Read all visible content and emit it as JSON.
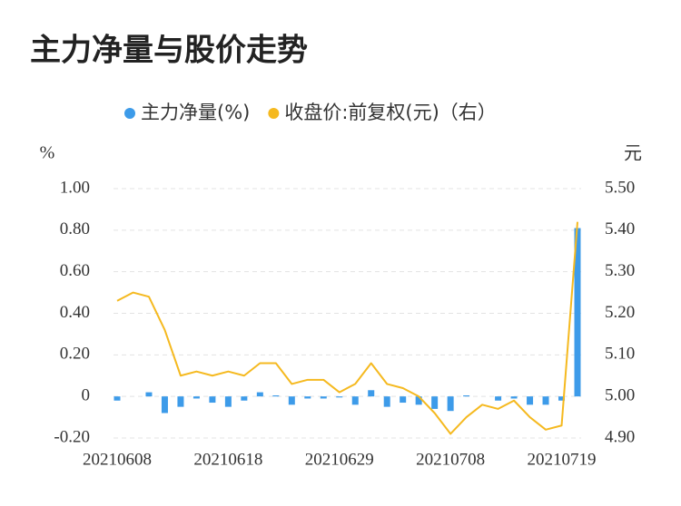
{
  "chart_data": {
    "type": "bar_line",
    "title": "主力净量与股价走势",
    "ylabel": "%",
    "y2label": "元",
    "categories": [
      "20210608",
      null,
      null,
      null,
      null,
      null,
      null,
      "20210618",
      null,
      null,
      null,
      null,
      null,
      null,
      "20210629",
      null,
      null,
      null,
      null,
      null,
      null,
      "20210708",
      null,
      null,
      null,
      null,
      null,
      null,
      "20210719",
      null
    ],
    "series": [
      {
        "name": "主力净量(%)",
        "type": "bar",
        "color": "#3d9be9",
        "values": [
          -0.02,
          0,
          0.02,
          -0.08,
          -0.05,
          -0.01,
          -0.03,
          -0.05,
          -0.02,
          0.02,
          0.005,
          -0.04,
          -0.01,
          -0.01,
          -0.005,
          -0.04,
          0.03,
          -0.05,
          -0.03,
          -0.04,
          -0.06,
          -0.07,
          0.005,
          0,
          -0.02,
          -0.01,
          -0.04,
          -0.04,
          -0.02,
          0.81
        ]
      },
      {
        "name": "收盘价:前复权(元)（右）",
        "type": "line",
        "axis": "y2",
        "color": "#f5b91f",
        "values": [
          5.23,
          5.25,
          5.24,
          5.16,
          5.05,
          5.06,
          5.05,
          5.06,
          5.05,
          5.08,
          5.08,
          5.03,
          5.04,
          5.04,
          5.01,
          5.03,
          5.08,
          5.03,
          5.02,
          5.0,
          4.96,
          4.91,
          4.95,
          4.98,
          4.97,
          4.99,
          4.95,
          4.92,
          4.93,
          5.42
        ]
      }
    ],
    "ylim": [
      -0.2,
      1.0
    ],
    "yticks": [
      {
        "value": -0.2,
        "label": "-0.20"
      },
      0,
      {
        "value": 0.2,
        "label": "0.20"
      },
      {
        "value": 0.4,
        "label": "0.40"
      },
      {
        "value": 0.6,
        "label": "0.60"
      },
      {
        "value": 0.8,
        "label": "0.80"
      },
      {
        "value": 1.0,
        "label": "1.00"
      }
    ],
    "y2lim": [
      4.9,
      5.5
    ],
    "y2ticks": [
      {
        "value": 4.9,
        "label": "4.90"
      },
      {
        "value": 5.0,
        "label": "5.00"
      },
      {
        "value": 5.1,
        "label": "5.10"
      },
      {
        "value": 5.2,
        "label": "5.20"
      },
      {
        "value": 5.3,
        "label": "5.30"
      },
      {
        "value": 5.4,
        "label": "5.40"
      },
      {
        "value": 5.5,
        "label": "5.50"
      }
    ],
    "grid": true,
    "legend": "top"
  }
}
